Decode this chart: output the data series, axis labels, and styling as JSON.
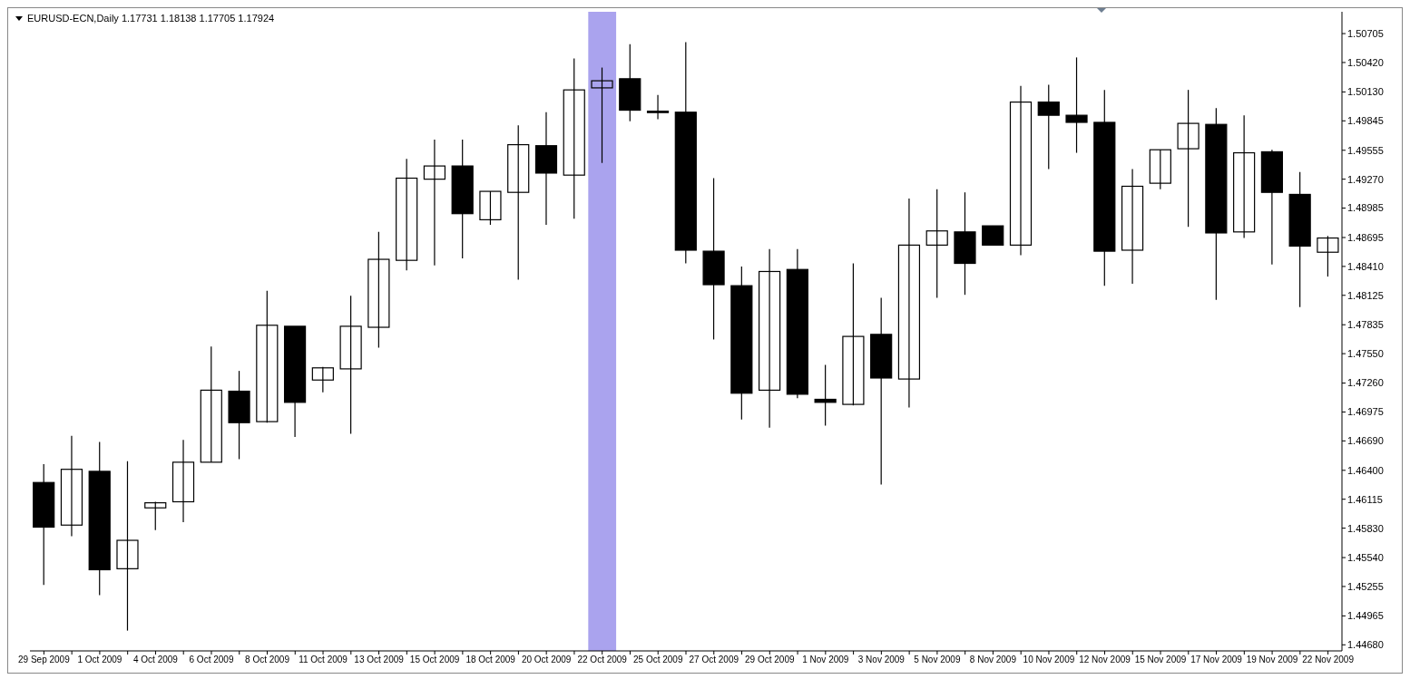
{
  "chart_data": {
    "type": "candlestick",
    "title": "EURUSD-ECN,Daily  1.17731 1.18138 1.17705 1.17924",
    "categories": [
      "29 Sep 2009",
      null,
      "1 Oct 2009",
      null,
      "4 Oct 2009",
      null,
      "6 Oct 2009",
      null,
      "8 Oct 2009",
      null,
      "11 Oct 2009",
      null,
      "13 Oct 2009",
      null,
      "15 Oct 2009",
      null,
      "18 Oct 2009",
      null,
      "20 Oct 2009",
      null,
      "22 Oct 2009",
      null,
      "25 Oct 2009",
      null,
      "27 Oct 2009",
      null,
      "29 Oct 2009",
      null,
      "1 Nov 2009",
      null,
      "3 Nov 2009",
      null,
      "5 Nov 2009",
      null,
      "8 Nov 2009",
      null,
      "10 Nov 2009",
      null,
      "12 Nov 2009",
      null,
      "15 Nov 2009",
      null,
      "17 Nov 2009",
      null,
      "19 Nov 2009",
      null,
      "22 Nov 2009"
    ],
    "ohlc": [
      [
        1.4628,
        1.4646,
        1.4527,
        1.4584
      ],
      [
        1.4586,
        1.4674,
        1.4575,
        1.4641
      ],
      [
        1.4639,
        1.4668,
        1.4517,
        1.4542
      ],
      [
        1.4543,
        1.4649,
        1.4482,
        1.4571
      ],
      [
        1.4603,
        1.4609,
        1.4581,
        1.4608
      ],
      [
        1.4609,
        1.467,
        1.4589,
        1.4648
      ],
      [
        1.4648,
        1.4762,
        1.4648,
        1.4719
      ],
      [
        1.4718,
        1.4738,
        1.4651,
        1.4687
      ],
      [
        1.4688,
        1.4817,
        1.4687,
        1.4783
      ],
      [
        1.4782,
        1.4782,
        1.4673,
        1.4707
      ],
      [
        1.4729,
        1.4742,
        1.4717,
        1.4741
      ],
      [
        1.474,
        1.4812,
        1.4676,
        1.4782
      ],
      [
        1.4781,
        1.4875,
        1.4761,
        1.4848
      ],
      [
        1.4847,
        1.4947,
        1.4837,
        1.4928
      ],
      [
        1.4927,
        1.4966,
        1.4842,
        1.494
      ],
      [
        1.494,
        1.4966,
        1.4849,
        1.4893
      ],
      [
        1.4887,
        1.4915,
        1.4882,
        1.4915
      ],
      [
        1.4914,
        1.498,
        1.4828,
        1.4961
      ],
      [
        1.496,
        1.4993,
        1.4882,
        1.4933
      ],
      [
        1.4931,
        1.5046,
        1.4888,
        1.5015
      ],
      [
        1.5017,
        1.5037,
        1.4943,
        1.5024
      ],
      [
        1.5026,
        1.506,
        1.4984,
        1.4995
      ],
      [
        1.4994,
        1.501,
        1.4986,
        1.4994
      ],
      [
        1.4993,
        1.5062,
        1.4844,
        1.4857
      ],
      [
        1.4856,
        1.4928,
        1.4769,
        1.4823
      ],
      [
        1.4822,
        1.4841,
        1.469,
        1.4716
      ],
      [
        1.4719,
        1.4858,
        1.4682,
        1.4836
      ],
      [
        1.4838,
        1.4858,
        1.4711,
        1.4715
      ],
      [
        1.471,
        1.4744,
        1.4684,
        1.4707
      ],
      [
        1.4705,
        1.4844,
        1.4704,
        1.4772
      ],
      [
        1.4774,
        1.481,
        1.4626,
        1.4731
      ],
      [
        1.473,
        1.4908,
        1.4702,
        1.4862
      ],
      [
        1.4862,
        1.4917,
        1.481,
        1.4876
      ],
      [
        1.4875,
        1.4914,
        1.4813,
        1.4844
      ],
      [
        1.4881,
        1.4881,
        1.4862,
        1.4862
      ],
      [
        1.4862,
        1.5019,
        1.4852,
        1.5003
      ],
      [
        1.5003,
        1.502,
        1.4937,
        1.499
      ],
      [
        1.499,
        1.5047,
        1.4953,
        1.4983
      ],
      [
        1.4983,
        1.5015,
        1.4822,
        1.4856
      ],
      [
        1.4857,
        1.4937,
        1.4824,
        1.492
      ],
      [
        1.4923,
        1.4956,
        1.4917,
        1.4956
      ],
      [
        1.4957,
        1.5015,
        1.488,
        1.4982
      ],
      [
        1.4981,
        1.4997,
        1.4808,
        1.4874
      ],
      [
        1.4875,
        1.499,
        1.4869,
        1.4953
      ],
      [
        1.4954,
        1.4956,
        1.4843,
        1.4914
      ],
      [
        1.4912,
        1.4934,
        1.4801,
        1.4861
      ],
      [
        1.4855,
        1.4871,
        1.4831,
        1.4869
      ]
    ],
    "ylim": [
      1.4462,
      1.5092
    ],
    "yticks": [
      1.50705,
      {
        "value": 1.5042,
        "label": "1.50420"
      },
      {
        "value": 1.5013,
        "label": "1.50130"
      },
      1.49845,
      1.49555,
      {
        "value": 1.4927,
        "label": "1.49270"
      },
      1.48985,
      1.48695,
      {
        "value": 1.4841,
        "label": "1.48410"
      },
      1.48125,
      1.47835,
      {
        "value": 1.4755,
        "label": "1.47550"
      },
      {
        "value": 1.4726,
        "label": "1.47260"
      },
      1.46975,
      {
        "value": 1.4669,
        "label": "1.46690"
      },
      {
        "value": 1.464,
        "label": "1.46400"
      },
      1.46115,
      {
        "value": 1.4583,
        "label": "1.45830"
      },
      {
        "value": 1.4554,
        "label": "1.45540"
      },
      1.45255,
      1.44965,
      {
        "value": 1.4468,
        "label": "1.44680"
      }
    ],
    "bands": [
      {
        "axis": "x",
        "from": "22 Oct 2009",
        "to": "22 Oct 2009",
        "color": "#aaa3ee"
      }
    ]
  }
}
